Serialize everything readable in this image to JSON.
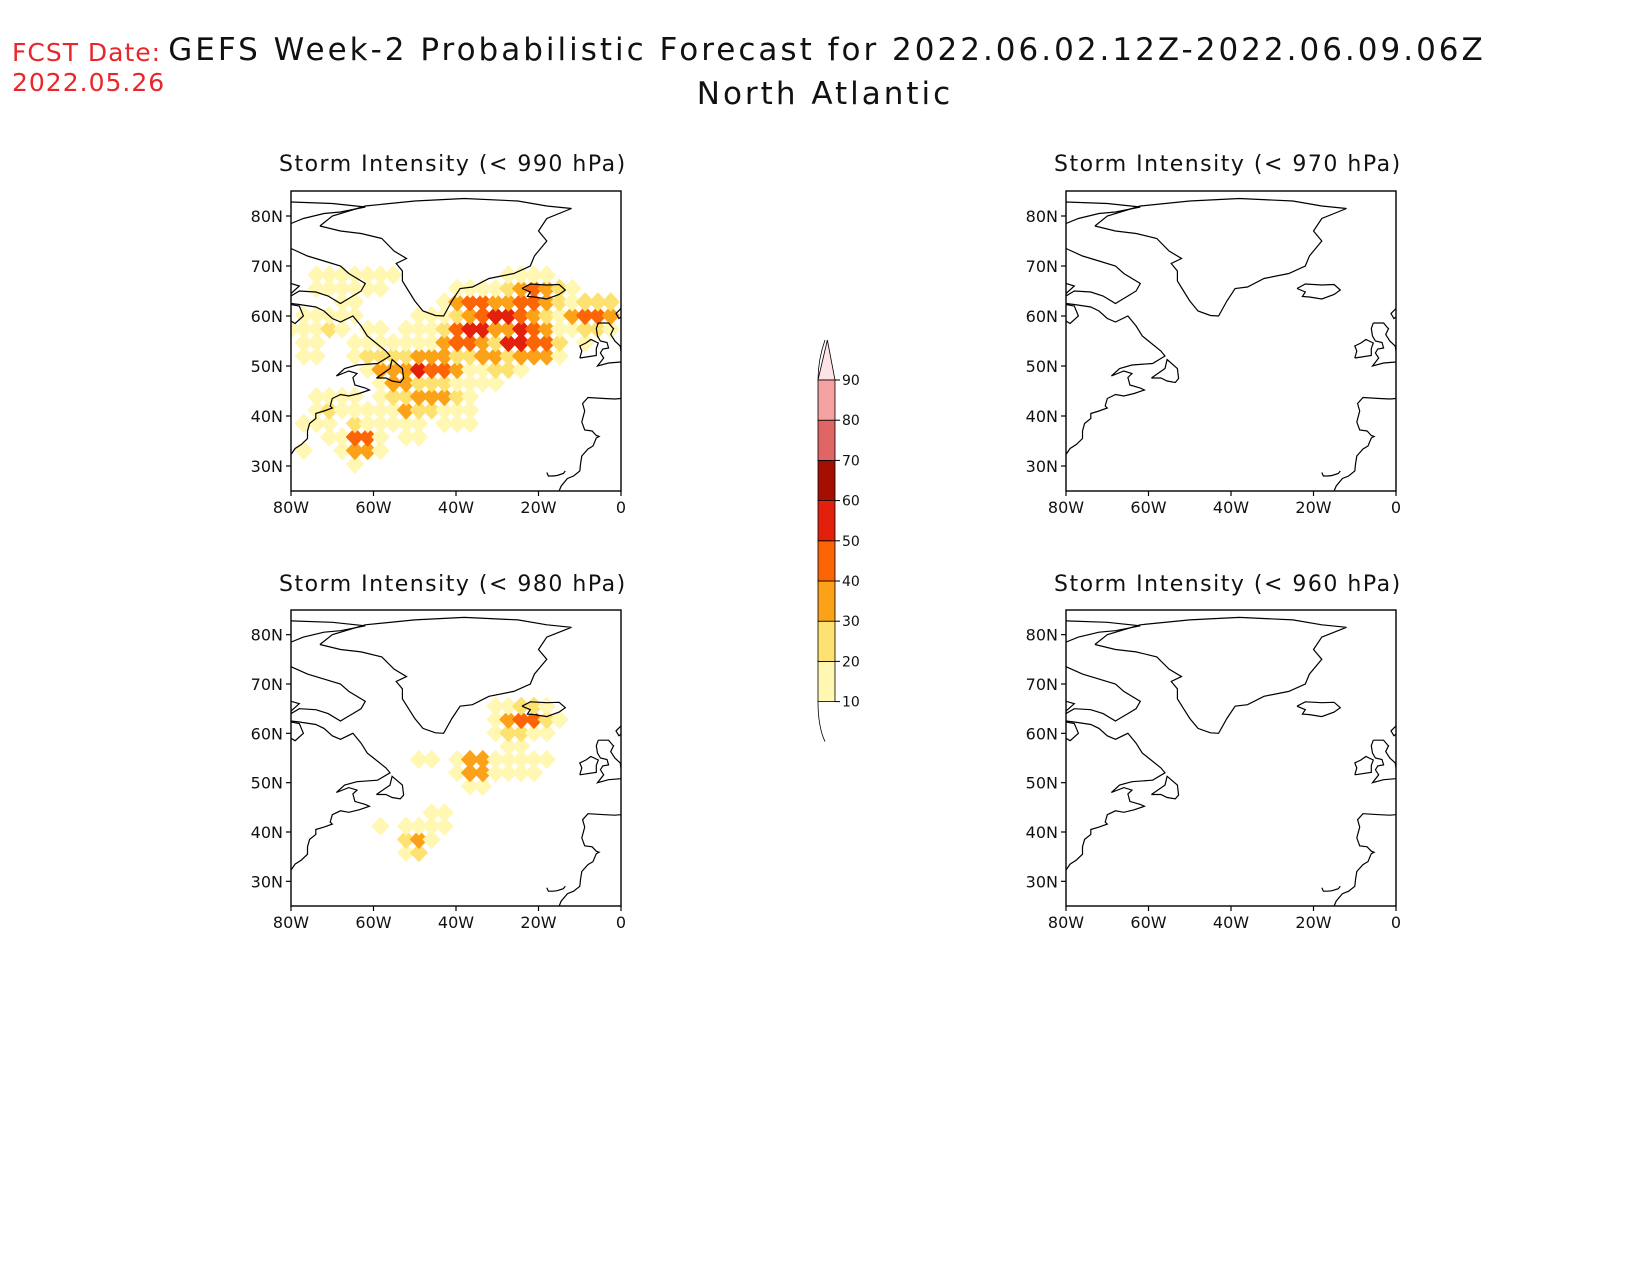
{
  "fcst_date": {
    "label": "FCST Date:",
    "value": "2022.05.26"
  },
  "title": {
    "line1": "GEFS Week-2 Probabilistic Forecast for 2022.06.02.12Z-2022.06.09.06Z",
    "line2": "North Atlantic"
  },
  "axes": {
    "lat_labels": [
      "80N",
      "70N",
      "60N",
      "50N",
      "40N",
      "30N"
    ],
    "lon_labels": [
      "80W",
      "60W",
      "40W",
      "20W",
      "0"
    ]
  },
  "panels": [
    {
      "id": "p990",
      "title": "Storm Intensity (< 990 hPa)",
      "threshold_hpa": 990,
      "field": "broad"
    },
    {
      "id": "p970",
      "title": "Storm Intensity (< 970 hPa)",
      "threshold_hpa": 970,
      "field": "none"
    },
    {
      "id": "p980",
      "title": "Storm Intensity (< 980 hPa)",
      "threshold_hpa": 980,
      "field": "scattered"
    },
    {
      "id": "p960",
      "title": "Storm Intensity (< 960 hPa)",
      "threshold_hpa": 960,
      "field": "none"
    }
  ],
  "colorbar": {
    "levels": [
      "10",
      "20",
      "30",
      "40",
      "50",
      "60",
      "70",
      "80",
      "90"
    ],
    "colors": [
      "#fff7b2",
      "#fde272",
      "#fba219",
      "#fc6505",
      "#e3200b",
      "#a50f03",
      "#e06666",
      "#f4a1a1",
      "#fde3e6"
    ]
  },
  "chart_data": {
    "type": "heatmap",
    "units": "%",
    "lon_range": [
      -80,
      0
    ],
    "lat_range": [
      25,
      85
    ],
    "panels": {
      "990": [
        {
          "lon": -36,
          "lat": 57,
          "p": 60
        },
        {
          "lon": -30,
          "lat": 60,
          "p": 60
        },
        {
          "lon": -25,
          "lat": 55,
          "p": 60
        },
        {
          "lon": -23,
          "lat": 58,
          "p": 55
        },
        {
          "lon": -48,
          "lat": 50,
          "p": 55
        },
        {
          "lon": -63,
          "lat": 35,
          "p": 55
        },
        {
          "lon": -20,
          "lat": 54,
          "p": 50
        },
        {
          "lon": -43,
          "lat": 50,
          "p": 45
        },
        {
          "lon": -39,
          "lat": 55,
          "p": 45
        },
        {
          "lon": -35,
          "lat": 62,
          "p": 50
        },
        {
          "lon": -25,
          "lat": 60,
          "p": 50
        },
        {
          "lon": -47,
          "lat": 43,
          "p": 40
        },
        {
          "lon": -54,
          "lat": 46,
          "p": 38
        },
        {
          "lon": -43,
          "lat": 44,
          "p": 35
        },
        {
          "lon": -57,
          "lat": 50,
          "p": 35
        },
        {
          "lon": -51,
          "lat": 41,
          "p": 32
        },
        {
          "lon": -29,
          "lat": 51,
          "p": 35
        },
        {
          "lon": -33,
          "lat": 52,
          "p": 32
        },
        {
          "lon": -22,
          "lat": 64,
          "p": 50
        },
        {
          "lon": -7,
          "lat": 60,
          "p": 50
        },
        {
          "lon": -60,
          "lat": 52,
          "p": 30
        },
        {
          "lon": -40,
          "lat": 40,
          "p": 22
        },
        {
          "lon": -56,
          "lat": 40,
          "p": 22
        },
        {
          "lon": -62,
          "lat": 40,
          "p": 18
        },
        {
          "lon": -50,
          "lat": 37,
          "p": 18
        },
        {
          "lon": -60,
          "lat": 35,
          "p": 20
        },
        {
          "lon": -68,
          "lat": 36,
          "p": 15
        },
        {
          "lon": -71,
          "lat": 42,
          "p": 25
        },
        {
          "lon": -75,
          "lat": 38,
          "p": 13
        },
        {
          "lon": -77,
          "lat": 32,
          "p": 12
        },
        {
          "lon": -72,
          "lat": 58,
          "p": 22
        },
        {
          "lon": -76,
          "lat": 53,
          "p": 15
        },
        {
          "lon": -78,
          "lat": 57,
          "p": 13
        },
        {
          "lon": -71,
          "lat": 67,
          "p": 15
        },
        {
          "lon": -66,
          "lat": 63,
          "p": 12
        },
        {
          "lon": -62,
          "lat": 67,
          "p": 20
        },
        {
          "lon": -60,
          "lat": 56,
          "p": 14
        },
        {
          "lon": -64,
          "lat": 59,
          "p": 12
        },
        {
          "lon": -18,
          "lat": 63,
          "p": 25
        },
        {
          "lon": -8,
          "lat": 56,
          "p": 13
        },
        {
          "lon": -4,
          "lat": 58,
          "p": 15
        },
        {
          "lon": -45,
          "lat": 58,
          "p": 20
        },
        {
          "lon": -52,
          "lat": 55,
          "p": 18
        },
        {
          "lon": -38,
          "lat": 46,
          "p": 20
        },
        {
          "lon": -32,
          "lat": 48,
          "p": 15
        },
        {
          "lon": -66,
          "lat": 45,
          "p": 12
        }
      ],
      "980": [
        {
          "lon": -35,
          "lat": 53,
          "p": 45
        },
        {
          "lon": -23,
          "lat": 63,
          "p": 45
        },
        {
          "lon": -25,
          "lat": 60,
          "p": 25
        },
        {
          "lon": -25,
          "lat": 53,
          "p": 22
        },
        {
          "lon": -30,
          "lat": 53,
          "p": 15
        },
        {
          "lon": -38,
          "lat": 52,
          "p": 15
        },
        {
          "lon": -20,
          "lat": 55,
          "p": 15
        },
        {
          "lon": -44,
          "lat": 43,
          "p": 22
        },
        {
          "lon": -50,
          "lat": 38,
          "p": 35
        },
        {
          "lon": -48,
          "lat": 55,
          "p": 12
        },
        {
          "lon": -58,
          "lat": 42,
          "p": 12
        }
      ],
      "970": [],
      "960": []
    }
  }
}
